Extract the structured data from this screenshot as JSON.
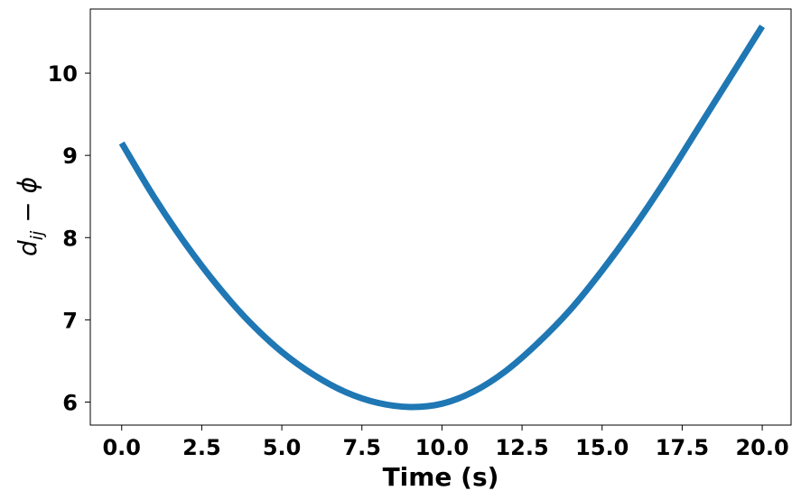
{
  "chart_data": {
    "type": "line",
    "title": "",
    "xlabel": "Time (s)",
    "ylabel": {
      "base": "d",
      "sub": "ij",
      "rest": " − ϕ"
    },
    "xlim": [
      -0.98,
      20.9
    ],
    "ylim": [
      5.72,
      10.78
    ],
    "xticks": [
      0.0,
      2.5,
      5.0,
      7.5,
      10.0,
      12.5,
      15.0,
      17.5,
      20.0
    ],
    "xtick_labels": [
      "0.0",
      "2.5",
      "5.0",
      "7.5",
      "10.0",
      "12.5",
      "15.0",
      "17.5",
      "20.0"
    ],
    "yticks": [
      6,
      7,
      8,
      9,
      10
    ],
    "ytick_labels": [
      "6",
      "7",
      "8",
      "9",
      "10"
    ],
    "grid": false,
    "series": [
      {
        "color": "#1f77b4",
        "x": [
          0,
          1,
          2,
          3,
          4,
          5,
          6,
          7,
          8,
          9,
          10,
          11,
          12,
          13,
          14,
          15,
          16,
          17,
          18,
          19,
          20
        ],
        "y": [
          9.15,
          8.5,
          7.92,
          7.41,
          6.97,
          6.61,
          6.33,
          6.12,
          5.99,
          5.94,
          5.98,
          6.13,
          6.38,
          6.72,
          7.12,
          7.6,
          8.13,
          8.71,
          9.33,
          9.95,
          10.57
        ]
      }
    ]
  }
}
